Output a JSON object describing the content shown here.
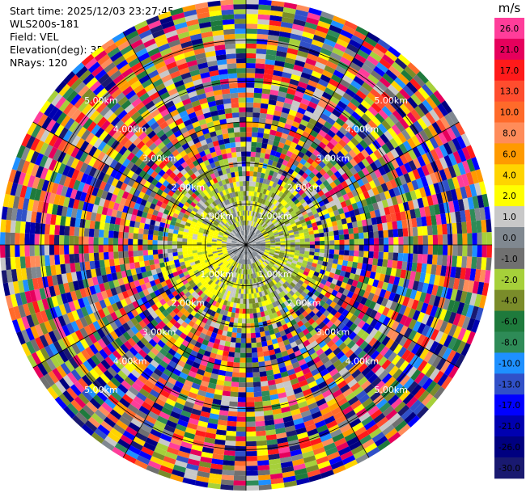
{
  "header": {
    "start_time": "Start time: 2025/12/03 23:27:45",
    "instrument": "WLS200s-181",
    "field": "Field: VEL",
    "elevation": "Elevation(deg): 35.00",
    "nrays": "NRays: 120"
  },
  "chart_data": {
    "type": "heatmap",
    "projection": "polar-ppi",
    "title": "",
    "field": "VEL",
    "nrays": 120,
    "elevation_deg": 35.0,
    "range_rings_km": [
      1.0,
      2.0,
      3.0,
      4.0,
      5.0
    ],
    "range_ring_labels": [
      "1.00km",
      "2.00km",
      "3.00km",
      "4.00km",
      "5.00km"
    ],
    "max_range_km": 6.0,
    "colorbar": {
      "unit": "m/s",
      "ticks": [
        "26.0",
        "21.0",
        "17.0",
        "13.0",
        "10.0",
        "8.0",
        "6.0",
        "4.0",
        "2.0",
        "1.0",
        "0.0",
        "-1.0",
        "-2.0",
        "-4.0",
        "-6.0",
        "-8.0",
        "-10.0",
        "-13.0",
        "-17.0",
        "-21.0",
        "-26.0",
        "-30.0"
      ],
      "colors": [
        "#ff3d9a",
        "#e6005c",
        "#ff1a1a",
        "#ff4d2e",
        "#ff6a2a",
        "#ff8c5a",
        "#ff9a00",
        "#ffd400",
        "#ffff00",
        "#c8c8c8",
        "#808890",
        "#707070",
        "#a6d03a",
        "#7a8c2a",
        "#1e7a3c",
        "#2e8b57",
        "#1e90ff",
        "#3050c8",
        "#0000ff",
        "#0000b0",
        "#000080",
        "#191970"
      ]
    },
    "near_field": {
      "description": "low-velocity core",
      "radius_km": 1.6
    }
  }
}
